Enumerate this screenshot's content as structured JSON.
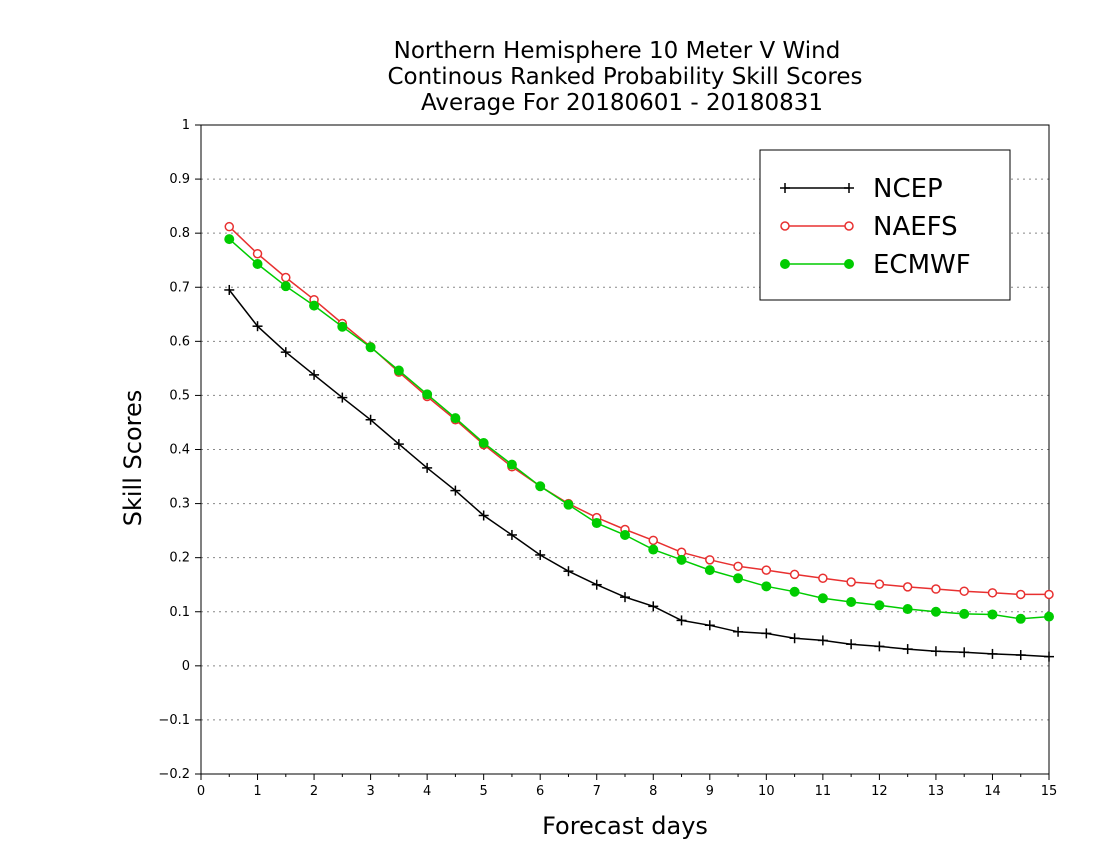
{
  "chart_data": {
    "type": "line",
    "title": [
      "Northern Hemisphere 10 Meter V Wind",
      "Continous Ranked Probability Skill Scores",
      "Average For 20180601 - 20180831"
    ],
    "xlabel": "Forecast days",
    "ylabel": "Skill Scores",
    "xlim": [
      0,
      15
    ],
    "ylim": [
      -0.2,
      1
    ],
    "xticks": [
      0,
      1,
      2,
      3,
      4,
      5,
      6,
      7,
      8,
      9,
      10,
      11,
      12,
      13,
      14,
      15
    ],
    "xtick_labels": [
      "0",
      "1",
      "2",
      "3",
      "4",
      "5",
      "6",
      "7",
      "8",
      "9",
      "10",
      "11",
      "12",
      "13",
      "14",
      "15"
    ],
    "yticks": [
      -0.2,
      -0.1,
      0,
      0.1,
      0.2,
      0.3,
      0.4,
      0.5,
      0.6,
      0.7,
      0.8,
      0.9,
      1
    ],
    "ytick_labels": [
      "−0.2",
      "−0.1",
      "0",
      "0.1",
      "0.2",
      "0.3",
      "0.4",
      "0.5",
      "0.6",
      "0.7",
      "0.8",
      "0.9",
      "1"
    ],
    "grid": "horizontal dotted",
    "legend_position": "top-right",
    "x": [
      0.5,
      1,
      1.5,
      2,
      2.5,
      3,
      3.5,
      4,
      4.5,
      5,
      5.5,
      6,
      6.5,
      7,
      7.5,
      8,
      8.5,
      9,
      9.5,
      10,
      10.5,
      11,
      11.5,
      12,
      12.5,
      13,
      13.5,
      14,
      14.5,
      15
    ],
    "series": [
      {
        "name": "NCEP",
        "color": "#000000",
        "marker": "plus",
        "values": [
          0.695,
          0.628,
          0.58,
          0.538,
          0.496,
          0.455,
          0.41,
          0.366,
          0.324,
          0.278,
          0.242,
          0.205,
          0.175,
          0.15,
          0.127,
          0.11,
          0.084,
          0.075,
          0.063,
          0.06,
          0.051,
          0.047,
          0.04,
          0.036,
          0.031,
          0.027,
          0.025,
          0.022,
          0.02,
          0.017
        ]
      },
      {
        "name": "NAEFS",
        "color": "#e83030",
        "marker": "open-circle",
        "values": [
          0.812,
          0.762,
          0.718,
          0.677,
          0.633,
          0.59,
          0.543,
          0.498,
          0.455,
          0.409,
          0.368,
          0.332,
          0.3,
          0.274,
          0.252,
          0.232,
          0.21,
          0.196,
          0.184,
          0.177,
          0.169,
          0.162,
          0.155,
          0.151,
          0.146,
          0.142,
          0.138,
          0.135,
          0.132,
          0.132
        ]
      },
      {
        "name": "ECMWF",
        "color": "#00cc00",
        "marker": "filled-circle",
        "values": [
          0.789,
          0.743,
          0.702,
          0.666,
          0.627,
          0.589,
          0.546,
          0.502,
          0.458,
          0.412,
          0.372,
          0.332,
          0.298,
          0.264,
          0.242,
          0.215,
          0.196,
          0.177,
          0.162,
          0.147,
          0.137,
          0.125,
          0.118,
          0.112,
          0.105,
          0.1,
          0.096,
          0.095,
          0.087,
          0.091
        ]
      }
    ]
  }
}
